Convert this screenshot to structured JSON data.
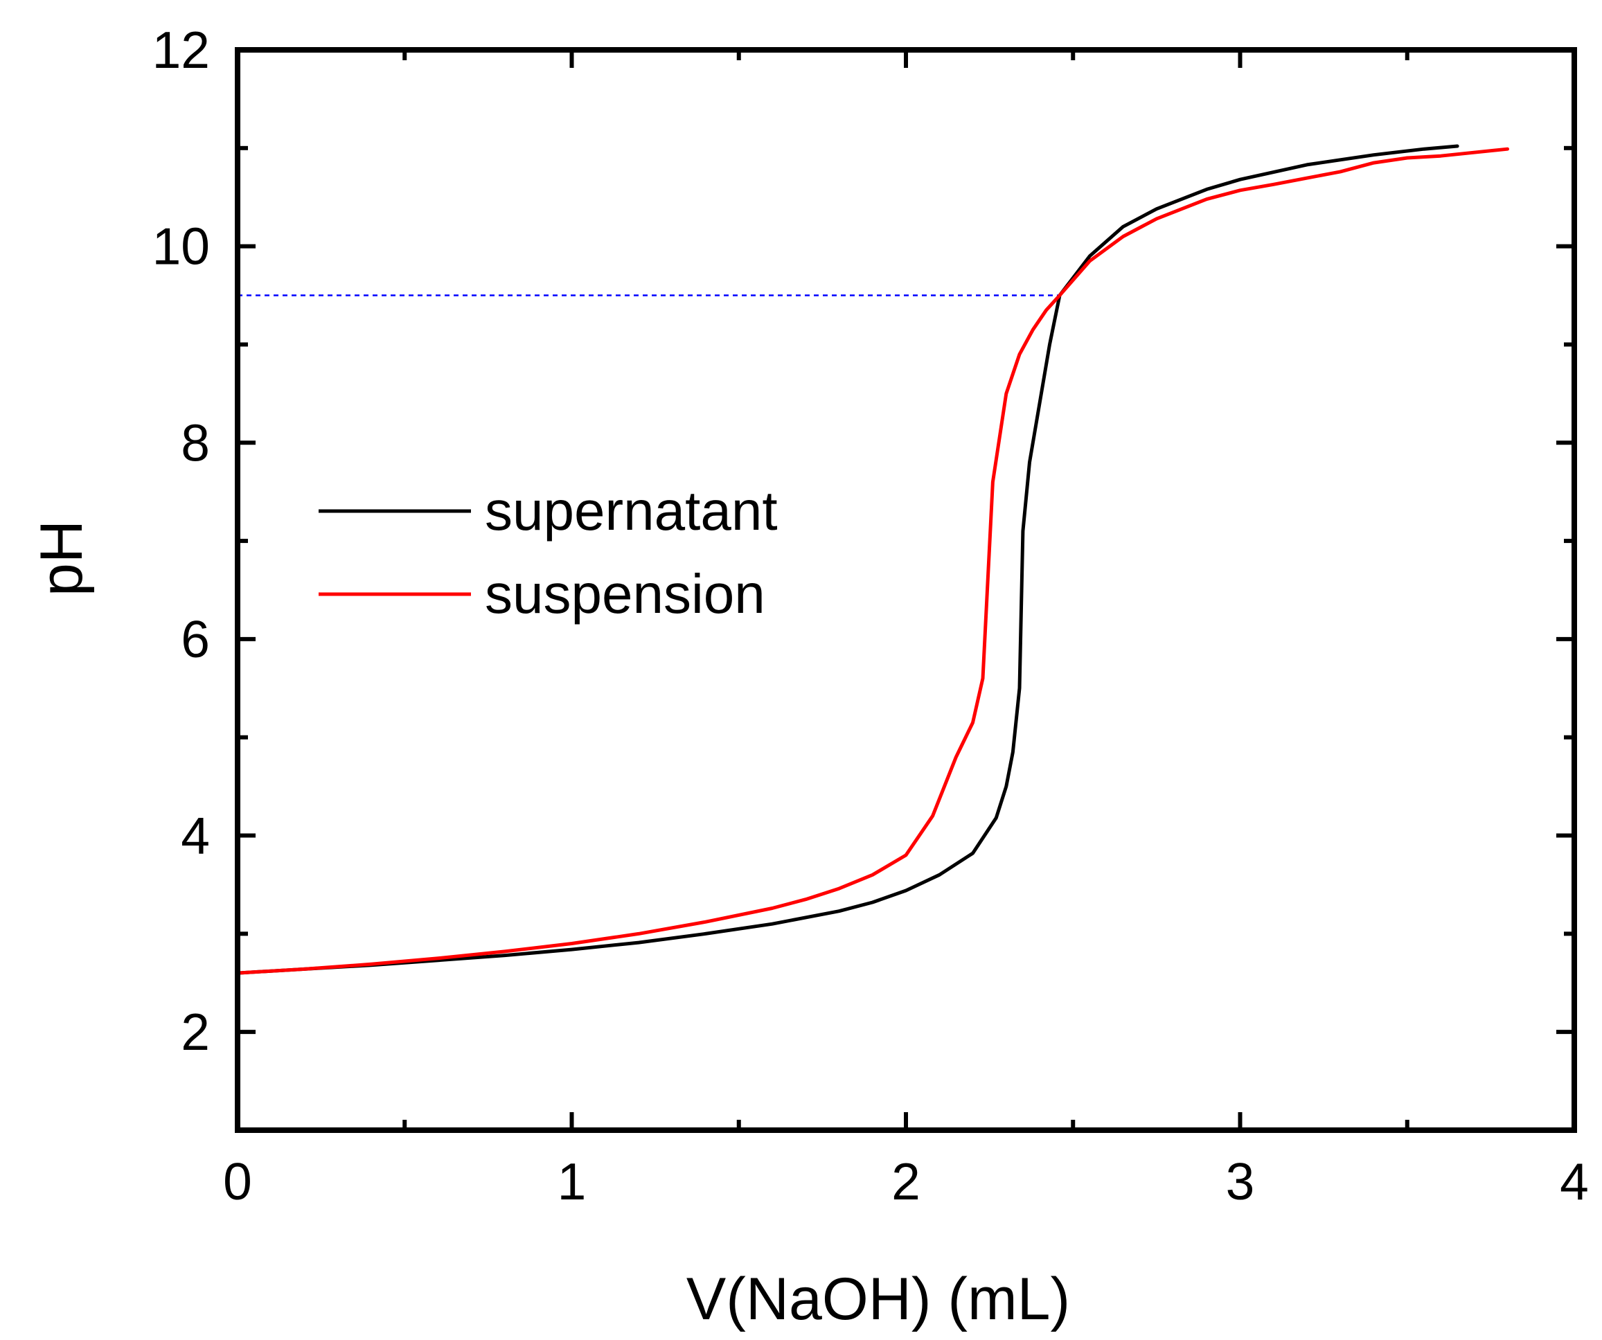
{
  "chart_data": {
    "type": "line",
    "title": "",
    "xlabel": "V(NaOH) (mL)",
    "ylabel": "pH",
    "xlim": [
      0,
      4
    ],
    "ylim": [
      1,
      12
    ],
    "xticks": [
      0,
      1,
      2,
      3,
      4
    ],
    "xtick_labels": [
      "0",
      "1",
      "2",
      "3",
      "4"
    ],
    "yticks": [
      2,
      4,
      6,
      8,
      10,
      12
    ],
    "ytick_labels": [
      "2",
      "4",
      "6",
      "8",
      "10",
      "12"
    ],
    "grid": false,
    "legend_position": "center-left",
    "reference_line": {
      "orientation": "horizontal",
      "y": 9.5,
      "x_from": 0,
      "x_to": 2.46,
      "style": "dashed",
      "color": "#0000ff"
    },
    "series": [
      {
        "name": "supernatant",
        "color": "#000000",
        "x": [
          0,
          0.2,
          0.4,
          0.6,
          0.8,
          1.0,
          1.2,
          1.4,
          1.6,
          1.8,
          1.9,
          2.0,
          2.1,
          2.2,
          2.27,
          2.3,
          2.32,
          2.34,
          2.35,
          2.37,
          2.4,
          2.43,
          2.46,
          2.55,
          2.65,
          2.75,
          2.9,
          3.0,
          3.2,
          3.4,
          3.55,
          3.65
        ],
        "y": [
          2.6,
          2.64,
          2.68,
          2.73,
          2.78,
          2.84,
          2.91,
          3.0,
          3.1,
          3.23,
          3.32,
          3.44,
          3.6,
          3.82,
          4.18,
          4.5,
          4.85,
          5.5,
          7.1,
          7.8,
          8.4,
          9.0,
          9.5,
          9.9,
          10.2,
          10.38,
          10.58,
          10.68,
          10.83,
          10.93,
          10.99,
          11.02
        ]
      },
      {
        "name": "suspension",
        "color": "#ff0000",
        "x": [
          0,
          0.2,
          0.4,
          0.6,
          0.8,
          1.0,
          1.2,
          1.4,
          1.6,
          1.7,
          1.8,
          1.9,
          2.0,
          2.08,
          2.15,
          2.2,
          2.23,
          2.26,
          2.3,
          2.34,
          2.38,
          2.42,
          2.46,
          2.55,
          2.65,
          2.75,
          2.9,
          3.0,
          3.1,
          3.3,
          3.4,
          3.5,
          3.6,
          3.8
        ],
        "y": [
          2.6,
          2.64,
          2.69,
          2.75,
          2.82,
          2.9,
          3.0,
          3.12,
          3.26,
          3.35,
          3.46,
          3.6,
          3.8,
          4.2,
          4.8,
          5.15,
          5.6,
          7.6,
          8.5,
          8.9,
          9.15,
          9.35,
          9.5,
          9.85,
          10.1,
          10.28,
          10.48,
          10.57,
          10.63,
          10.76,
          10.85,
          10.9,
          10.92,
          10.99
        ]
      }
    ]
  }
}
